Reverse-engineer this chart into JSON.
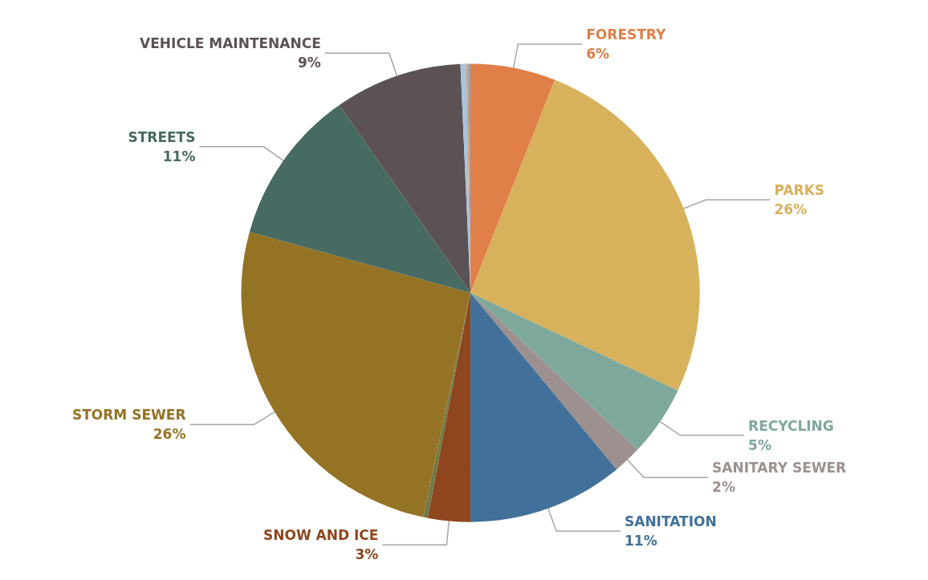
{
  "chart_data": {
    "type": "pie",
    "categories": [
      "FORESTRY",
      "PARKS",
      "RECYCLING",
      "SANITARY SEWER",
      "SANITATION",
      "SNOW AND ICE",
      null,
      "STORM SEWER",
      "STREETS",
      "VEHICLE MAINTENANCE",
      null,
      null,
      null
    ],
    "values": [
      6,
      26,
      5,
      2,
      11,
      3,
      0.3,
      26,
      11,
      9,
      0.4,
      0.15,
      0.15
    ],
    "value_labels": [
      "6%",
      "26%",
      "5%",
      "2%",
      "11%",
      "3%",
      null,
      "26%",
      "11%",
      "9%",
      null,
      null,
      null
    ],
    "colors": [
      "#e07f48",
      "#d8b15c",
      "#7ea89c",
      "#9c918e",
      "#41719a",
      "#8f461e",
      "#6e7a4a",
      "#957324",
      "#476a62",
      "#5b5253",
      "#a7c4e0",
      "#e09a62",
      "#7ba3d0"
    ],
    "legend": false
  }
}
